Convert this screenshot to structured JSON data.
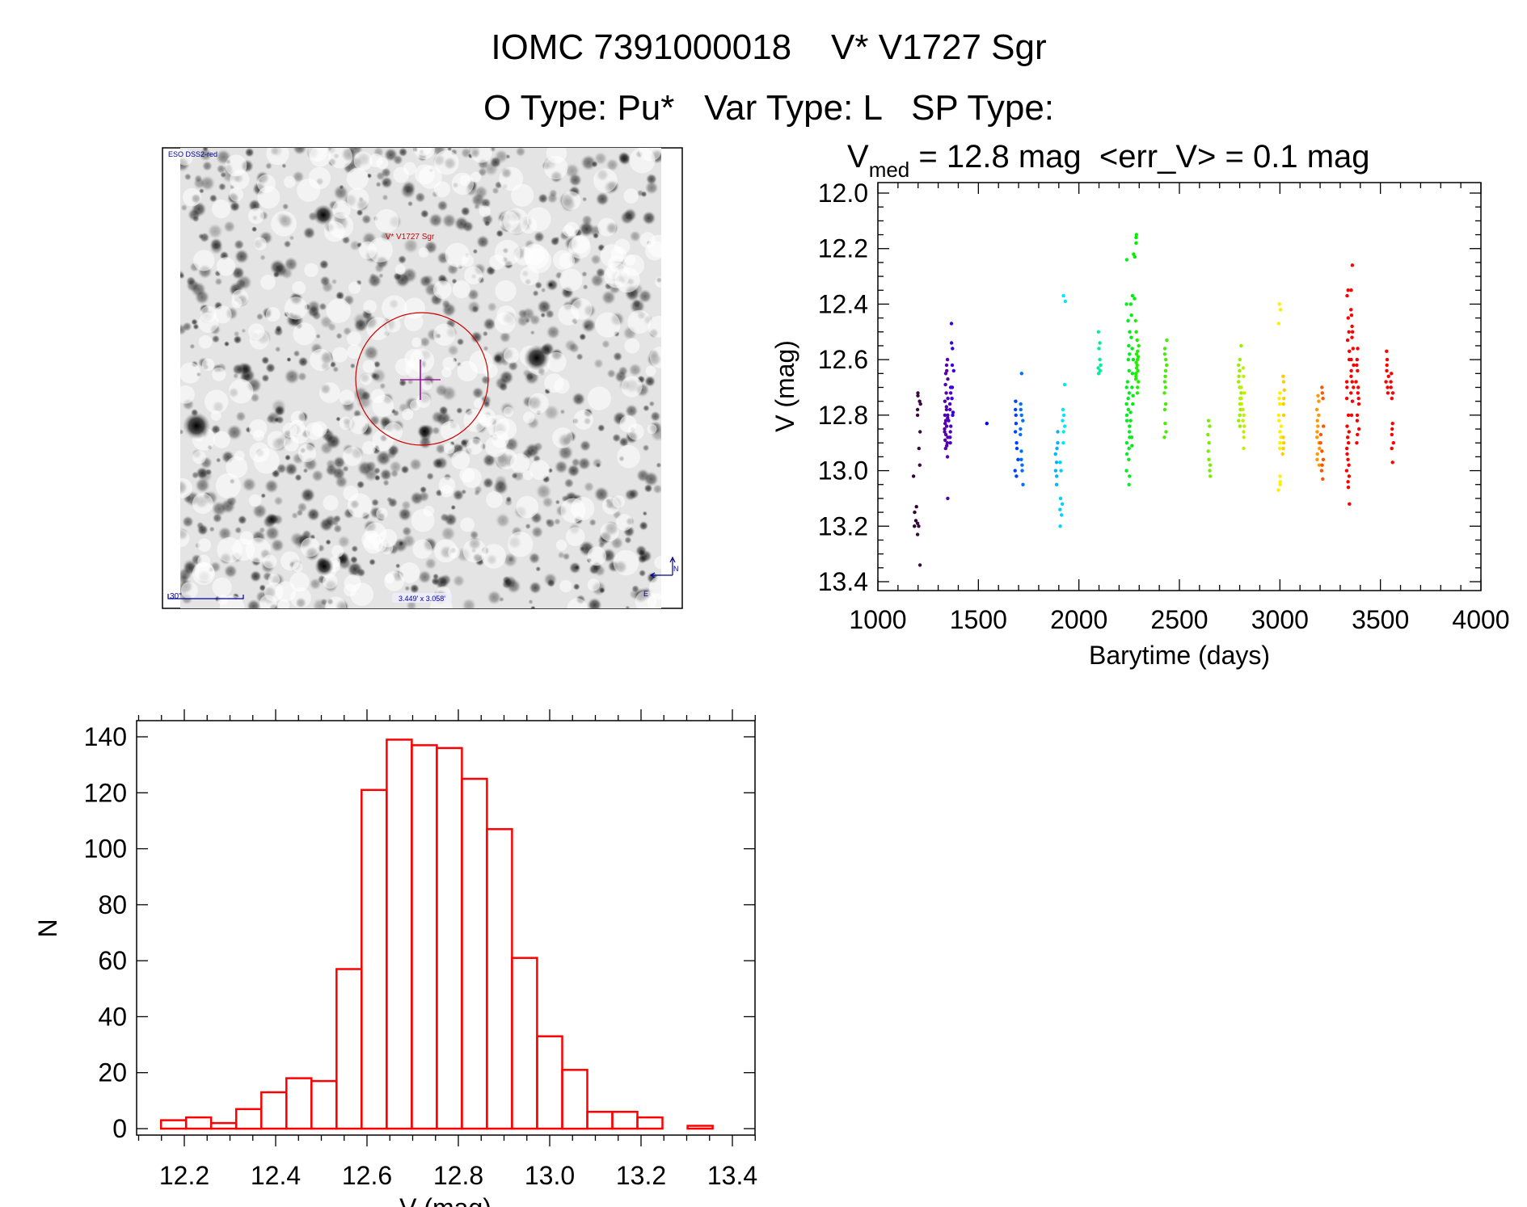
{
  "header": {
    "title_line1": "IOMC 7391000018    V* V1727 Sgr",
    "title_line2": "O Type: Pu*   Var Type: L   SP Type:"
  },
  "image_panel": {
    "survey_label": "ESO DSS2-red",
    "target_label": "V* V1727 Sgr",
    "scale_label": "30\"",
    "fov_label": "3.449' x 3.058'",
    "north_label": "N",
    "east_label": "E",
    "colors": {
      "circle": "#cc0000",
      "crosshair": "#990099",
      "annotation": "#000099"
    }
  },
  "chart_data": [
    {
      "type": "scatter",
      "title_prefix": "V",
      "title_subscript": "med",
      "title_rest": " = 12.8 mag  <err_V> = 0.1 mag",
      "xlabel": "Barytime (days)",
      "ylabel": "V (mag)",
      "xlim": [
        1000,
        4000
      ],
      "ylim": [
        13.45,
        11.95
      ],
      "y_inverted": true,
      "xticks": [
        "1000",
        "1500",
        "2000",
        "2500",
        "3000",
        "3500",
        "4000"
      ],
      "yticks": [
        "12.0",
        "12.2",
        "12.4",
        "12.6",
        "12.8",
        "13.0",
        "13.2",
        "13.4"
      ],
      "series": [
        {
          "color": "#330033",
          "t": 1185,
          "v": [
            13.02,
            13.13,
            13.15,
            13.18,
            13.2
          ]
        },
        {
          "color": "#3a0a40",
          "t": 1205,
          "v": [
            12.72,
            12.73,
            12.75,
            12.76,
            12.78,
            12.8,
            12.86,
            12.92,
            12.98,
            13.19,
            13.2,
            13.23,
            13.34
          ]
        },
        {
          "color": "#5500aa",
          "t": 1340,
          "v": [
            12.6,
            12.62,
            12.64,
            12.65,
            12.67,
            12.69,
            12.72,
            12.75,
            12.77,
            12.78,
            12.8,
            12.81,
            12.82,
            12.83,
            12.84,
            12.85,
            12.86,
            12.87,
            12.88,
            12.89,
            12.9,
            12.91,
            12.92,
            12.95,
            13.1
          ]
        },
        {
          "color": "#4a00c8",
          "t": 1355,
          "v": [
            12.7,
            12.72,
            12.74,
            12.76,
            12.78,
            12.8,
            12.82,
            12.84,
            12.86,
            12.88,
            12.9
          ]
        },
        {
          "color": "#3300ee",
          "t": 1370,
          "v": [
            12.47,
            12.54,
            12.56,
            12.62,
            12.64,
            12.7,
            12.74,
            12.79,
            12.8
          ]
        },
        {
          "color": "#0000ff",
          "t": 1540,
          "v": [
            12.83
          ]
        },
        {
          "color": "#0040ff",
          "t": 1690,
          "v": [
            12.75,
            12.78,
            12.8,
            12.83,
            12.86,
            12.9,
            12.92,
            12.96,
            13.0,
            13.02
          ]
        },
        {
          "color": "#0070ff",
          "t": 1715,
          "v": [
            12.65,
            12.76,
            12.78,
            12.8,
            12.82,
            12.85,
            12.87,
            12.93,
            12.96,
            12.98,
            13.0,
            13.05
          ]
        },
        {
          "color": "#00b4ff",
          "t": 1890,
          "v": [
            12.86,
            12.9,
            12.92,
            12.94,
            12.97,
            13.0,
            13.02,
            13.05
          ]
        },
        {
          "color": "#00d0ff",
          "t": 1910,
          "v": [
            12.97,
            13.0,
            13.1,
            13.12,
            13.14,
            13.16,
            13.2
          ]
        },
        {
          "color": "#00e6ff",
          "t": 1925,
          "v": [
            12.37,
            12.39,
            12.69,
            12.78,
            12.8,
            12.82,
            12.84,
            12.86,
            12.9
          ]
        },
        {
          "color": "#00ee99",
          "t": 2100,
          "v": [
            12.5,
            12.54,
            12.56,
            12.6,
            12.62,
            12.63,
            12.64,
            12.65
          ]
        },
        {
          "color": "#00ee22",
          "t": 2245,
          "v": [
            12.24,
            12.4,
            12.46,
            12.5,
            12.55,
            12.58,
            12.6,
            12.64,
            12.68,
            12.7,
            12.72,
            12.74,
            12.76,
            12.78,
            12.8,
            12.82,
            12.84,
            12.86,
            12.88,
            12.9,
            12.92,
            12.94,
            12.96,
            13.0,
            13.02,
            13.05
          ]
        },
        {
          "color": "#00ee11",
          "t": 2265,
          "v": [
            12.37,
            12.4,
            12.44,
            12.52,
            12.56,
            12.6,
            12.65,
            12.7,
            12.73,
            12.76,
            12.79,
            12.82,
            12.88,
            12.91
          ]
        },
        {
          "color": "#00ee00",
          "t": 2280,
          "v": [
            12.15,
            12.16,
            12.18,
            12.22,
            12.23,
            12.38
          ]
        },
        {
          "color": "#22ee00",
          "t": 2290,
          "v": [
            12.46,
            12.5,
            12.53,
            12.55,
            12.57,
            12.58,
            12.59,
            12.6,
            12.61,
            12.62,
            12.63,
            12.64,
            12.65,
            12.66,
            12.67,
            12.68,
            12.7,
            12.72
          ]
        },
        {
          "color": "#44ee00",
          "t": 2430,
          "v": [
            12.53,
            12.56,
            12.58,
            12.6,
            12.62,
            12.64,
            12.66,
            12.68,
            12.7,
            12.72,
            12.76,
            12.78,
            12.83,
            12.86,
            12.88
          ]
        },
        {
          "color": "#77ee00",
          "t": 2650,
          "v": [
            12.82,
            12.84,
            12.87,
            12.9,
            12.93,
            12.96,
            12.98,
            13.0,
            13.02
          ]
        },
        {
          "color": "#99ee00",
          "t": 2800,
          "v": [
            12.55,
            12.6,
            12.62,
            12.64,
            12.66,
            12.68,
            12.7,
            12.72,
            12.74,
            12.76,
            12.78,
            12.8,
            12.82,
            12.84
          ]
        },
        {
          "color": "#c4ee00",
          "t": 2815,
          "v": [
            12.63,
            12.66,
            12.7,
            12.72,
            12.74,
            12.76,
            12.78,
            12.8,
            12.82,
            12.84,
            12.86,
            12.88,
            12.92
          ]
        },
        {
          "color": "#ffee00",
          "t": 3000,
          "v": [
            12.4,
            12.42,
            12.47,
            12.72,
            12.74,
            12.76,
            12.8,
            12.82,
            12.84,
            12.86,
            12.88,
            12.9,
            12.92,
            13.02,
            13.04,
            13.05,
            13.07
          ]
        },
        {
          "color": "#ffcc00",
          "t": 3015,
          "v": [
            12.66,
            12.68,
            12.71,
            12.74,
            12.76,
            12.8,
            12.88,
            12.9,
            12.92,
            12.94
          ]
        },
        {
          "color": "#ff9900",
          "t": 3190,
          "v": [
            12.73,
            12.75,
            12.78,
            12.8,
            12.82,
            12.84,
            12.86,
            12.88,
            12.9,
            12.92,
            12.94,
            12.96,
            12.98
          ]
        },
        {
          "color": "#ff5500",
          "t": 3210,
          "v": [
            12.7,
            12.72,
            12.74,
            12.84,
            12.87,
            12.9,
            12.93,
            12.96,
            12.98,
            13.0,
            13.03
          ]
        },
        {
          "color": "#ff0000",
          "t": 3340,
          "v": [
            12.35,
            12.37,
            12.45,
            12.5,
            12.53,
            12.57,
            12.6,
            12.68,
            12.7,
            12.74,
            12.8,
            12.84,
            12.86,
            12.88,
            12.9,
            12.92,
            12.94,
            12.96,
            12.98,
            13.0,
            13.02,
            13.04,
            13.06,
            13.12
          ]
        },
        {
          "color": "#ff0000",
          "t": 3360,
          "v": [
            12.26,
            12.35,
            12.42,
            12.44,
            12.48,
            12.5,
            12.52,
            12.56,
            12.6,
            12.62,
            12.64,
            12.66,
            12.68,
            12.7,
            12.72,
            12.75,
            12.8
          ]
        },
        {
          "color": "#ff0000",
          "t": 3385,
          "v": [
            12.56,
            12.6,
            12.62,
            12.64,
            12.68,
            12.7,
            12.72,
            12.74,
            12.76,
            12.8,
            12.82,
            12.85,
            12.87,
            12.9
          ]
        },
        {
          "color": "#ff0000",
          "t": 3535,
          "v": [
            12.57,
            12.6,
            12.62,
            12.64,
            12.66,
            12.68,
            12.7,
            12.72
          ]
        },
        {
          "color": "#ff0000",
          "t": 3560,
          "v": [
            12.65,
            12.68,
            12.7,
            12.72,
            12.74,
            12.83,
            12.85,
            12.87,
            12.9,
            12.92,
            12.97
          ]
        }
      ]
    },
    {
      "type": "bar",
      "xlabel": "V (mag)",
      "ylabel": "N",
      "xlim": [
        12.1,
        13.45
      ],
      "ylim": [
        -3,
        145
      ],
      "xticks": [
        "12.2",
        "12.4",
        "12.6",
        "12.8",
        "13.0",
        "13.2",
        "13.4"
      ],
      "yticks": [
        "0",
        "20",
        "40",
        "60",
        "80",
        "100",
        "120",
        "140"
      ],
      "bin_start": 12.149,
      "bin_width": 0.0549,
      "values": [
        3,
        4,
        2,
        7,
        13,
        18,
        17,
        57,
        121,
        139,
        137,
        136,
        125,
        107,
        61,
        33,
        21,
        6,
        6,
        4,
        0,
        1
      ],
      "color": "#ff0000"
    }
  ]
}
